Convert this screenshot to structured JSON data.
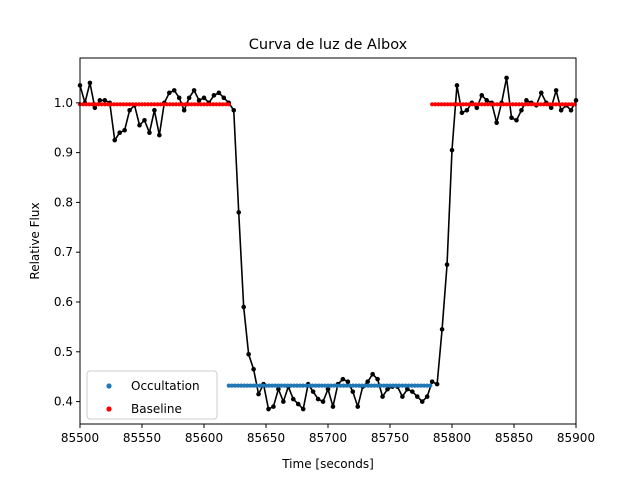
{
  "chart_data": {
    "type": "line",
    "title": "Curva de luz de Albox",
    "xlabel": "Time [seconds]",
    "ylabel": "Relative Flux",
    "xlim": [
      85500,
      85900
    ],
    "ylim": [
      0.355,
      1.09
    ],
    "xticks": [
      "85500",
      "85550",
      "85600",
      "85650",
      "85700",
      "85750",
      "85800",
      "85850",
      "85900"
    ],
    "yticks": [
      "0.4",
      "0.5",
      "0.6",
      "0.7",
      "0.8",
      "0.9",
      "1.0"
    ],
    "grid": false,
    "legend": {
      "placement": "lower-left",
      "entries": [
        "Occultation",
        "Baseline"
      ]
    },
    "series": [
      {
        "role": "light-curve",
        "style": "black line with dot markers",
        "color": "#000000",
        "x": [
          85500,
          85504,
          85508,
          85512,
          85516,
          85520,
          85524,
          85528,
          85532,
          85536,
          85540,
          85544,
          85548,
          85552,
          85556,
          85560,
          85564,
          85568,
          85572,
          85576,
          85580,
          85584,
          85588,
          85592,
          85596,
          85600,
          85604,
          85608,
          85612,
          85616,
          85620,
          85624,
          85628,
          85632,
          85636,
          85640,
          85644,
          85648,
          85652,
          85656,
          85660,
          85664,
          85668,
          85672,
          85676,
          85680,
          85684,
          85688,
          85692,
          85696,
          85700,
          85704,
          85708,
          85712,
          85716,
          85720,
          85724,
          85728,
          85732,
          85736,
          85740,
          85744,
          85748,
          85752,
          85756,
          85760,
          85764,
          85768,
          85772,
          85776,
          85780,
          85784,
          85788,
          85792,
          85796,
          85800,
          85804,
          85808,
          85812,
          85816,
          85820,
          85824,
          85828,
          85832,
          85836,
          85840,
          85844,
          85848,
          85852,
          85856,
          85860,
          85864,
          85868,
          85872,
          85876,
          85880,
          85884,
          85888,
          85892,
          85896,
          85900
        ],
        "y": [
          1.035,
          1.0,
          1.04,
          0.99,
          1.005,
          1.005,
          1.0,
          0.925,
          0.94,
          0.945,
          0.985,
          0.995,
          0.955,
          0.965,
          0.94,
          0.985,
          0.935,
          1.0,
          1.02,
          1.025,
          1.01,
          0.985,
          1.01,
          1.025,
          1.005,
          1.01,
          1.0,
          1.015,
          1.02,
          1.01,
          1.0,
          0.985,
          0.78,
          0.59,
          0.495,
          0.465,
          0.415,
          0.435,
          0.385,
          0.39,
          0.425,
          0.4,
          0.43,
          0.405,
          0.395,
          0.385,
          0.435,
          0.42,
          0.405,
          0.4,
          0.425,
          0.39,
          0.435,
          0.445,
          0.44,
          0.42,
          0.39,
          0.43,
          0.44,
          0.455,
          0.445,
          0.41,
          0.425,
          0.43,
          0.43,
          0.41,
          0.425,
          0.42,
          0.41,
          0.4,
          0.41,
          0.44,
          0.435,
          0.545,
          0.675,
          0.905,
          1.035,
          0.98,
          0.985,
          1.0,
          0.99,
          1.015,
          1.005,
          1.0,
          0.96,
          1.0,
          1.05,
          0.97,
          0.965,
          0.985,
          1.005,
          1.0,
          0.995,
          1.02,
          1.0,
          0.99,
          1.025,
          0.985,
          0.995,
          0.985,
          1.005
        ]
      },
      {
        "name": "Occultation",
        "style": "dots",
        "color": "#1f77b4",
        "x_start": 85620,
        "x_end": 85784,
        "x_step": 2.5,
        "y": 0.432
      },
      {
        "name": "Baseline",
        "style": "dots",
        "color": "#ff0000",
        "segments": [
          {
            "x_start": 85500,
            "x_end": 85620,
            "x_step": 2.5,
            "y": 0.997
          },
          {
            "x_start": 85784,
            "x_end": 85900,
            "x_step": 2.5,
            "y": 0.997
          }
        ]
      }
    ]
  }
}
